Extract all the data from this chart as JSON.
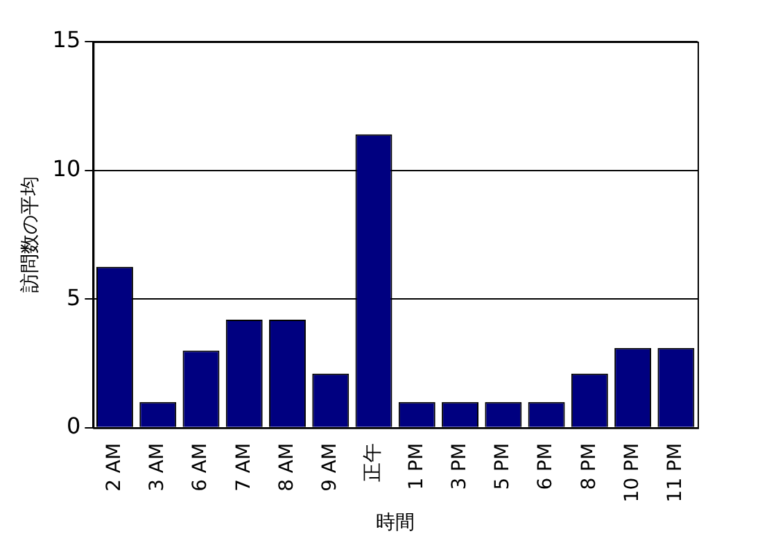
{
  "chart_data": {
    "type": "bar",
    "xlabel": "時間",
    "ylabel": "訪問数の平均",
    "categories": [
      "2 AM",
      "3 AM",
      "6 AM",
      "7 AM",
      "8 AM",
      "9 AM",
      "正午",
      "1 PM",
      "3 PM",
      "5 PM",
      "6 PM",
      "8 PM",
      "10 PM",
      "11 PM"
    ],
    "values": [
      6.25,
      1,
      3,
      4.2,
      4.2,
      2.1,
      11.4,
      1,
      1,
      1,
      1,
      2.1,
      3.1,
      3.1
    ],
    "color": "#000080",
    "ylim": [
      0,
      15
    ],
    "yticks": [
      0,
      5,
      10,
      15
    ],
    "grid": "y",
    "legend": false
  }
}
